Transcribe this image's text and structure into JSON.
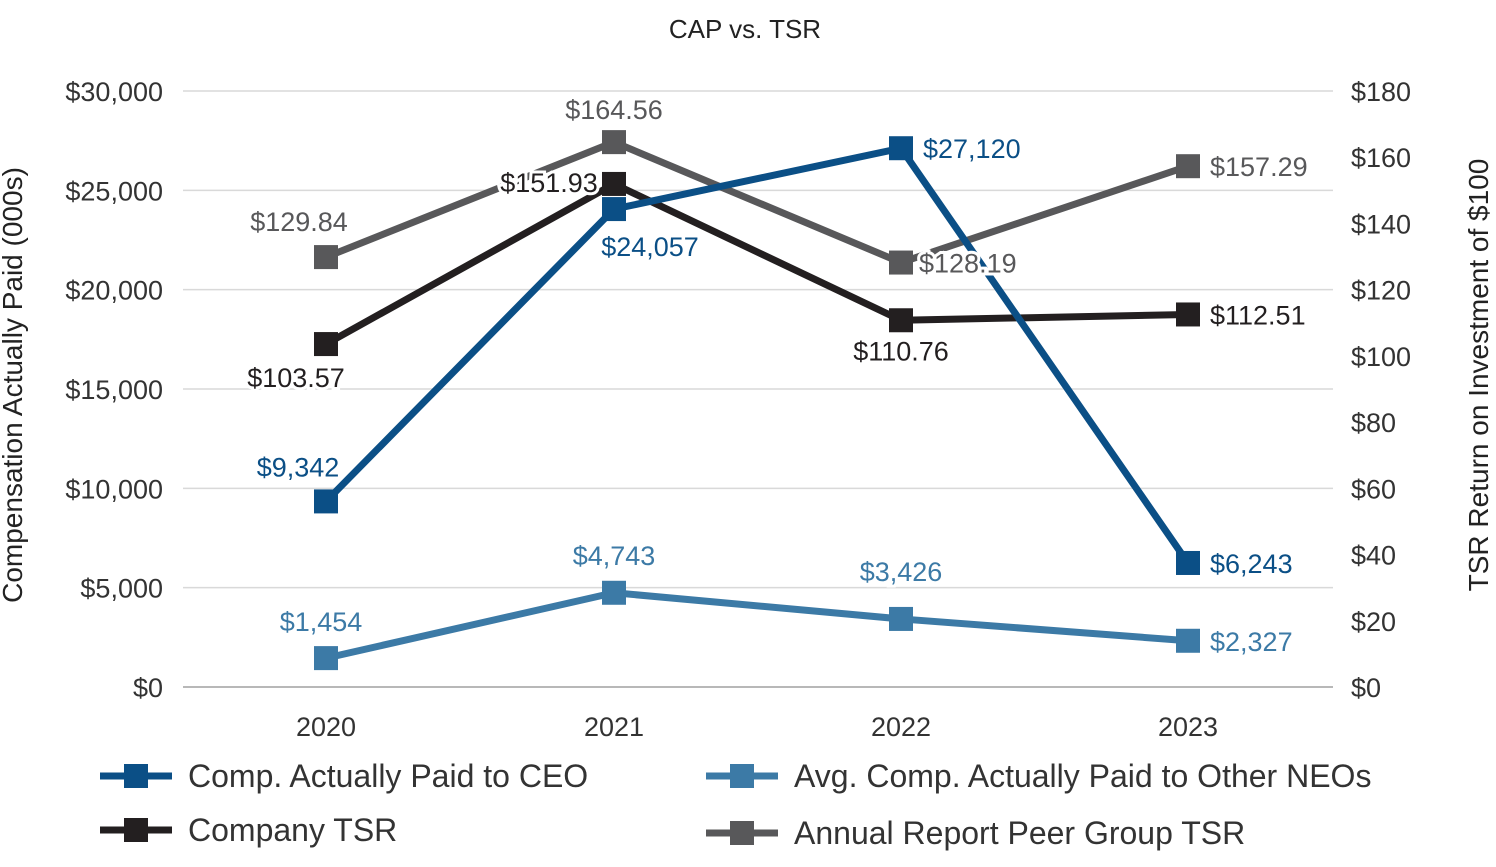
{
  "chart_data": {
    "type": "line",
    "title": "CAP vs. TSR",
    "categories": [
      "2020",
      "2021",
      "2022",
      "2023"
    ],
    "y_left": {
      "label": "Compensation Actually Paid (000s)",
      "ylim": [
        0,
        30000
      ],
      "ticks": [
        "$0",
        "$5,000",
        "$10,000",
        "$15,000",
        "$20,000",
        "$25,000",
        "$30,000"
      ]
    },
    "y_right": {
      "label": "TSR Return on Investment of $100",
      "ylim": [
        0,
        180
      ],
      "ticks": [
        "$0",
        "$20",
        "$40",
        "$60",
        "$80",
        "$100",
        "$120",
        "$140",
        "$160",
        "$180"
      ]
    },
    "grid": true,
    "legend_position": "bottom",
    "series": [
      {
        "name": "Comp. Actually Paid to CEO",
        "axis": "left",
        "color": "#0b4f86",
        "values": [
          9342,
          24057,
          27120,
          6243
        ],
        "labels": [
          "$9,342",
          "$24,057",
          "$27,120",
          "$6,243"
        ]
      },
      {
        "name": "Avg. Comp. Actually Paid to Other NEOs",
        "axis": "left",
        "color": "#3c7aa6",
        "values": [
          1454,
          4743,
          3426,
          2327
        ],
        "labels": [
          "$1,454",
          "$4,743",
          "$3,426",
          "$2,327"
        ]
      },
      {
        "name": "Company TSR",
        "axis": "right",
        "color": "#231f20",
        "values": [
          103.57,
          151.93,
          110.76,
          112.51
        ],
        "labels": [
          "$103.57",
          "$151.93",
          "$110.76",
          "$112.51"
        ]
      },
      {
        "name": "Annual Report Peer Group TSR",
        "axis": "right",
        "color": "#58585a",
        "values": [
          129.84,
          164.56,
          128.19,
          157.29
        ],
        "labels": [
          "$129.84",
          "$164.56",
          "$128.19",
          "$157.29"
        ]
      }
    ]
  }
}
